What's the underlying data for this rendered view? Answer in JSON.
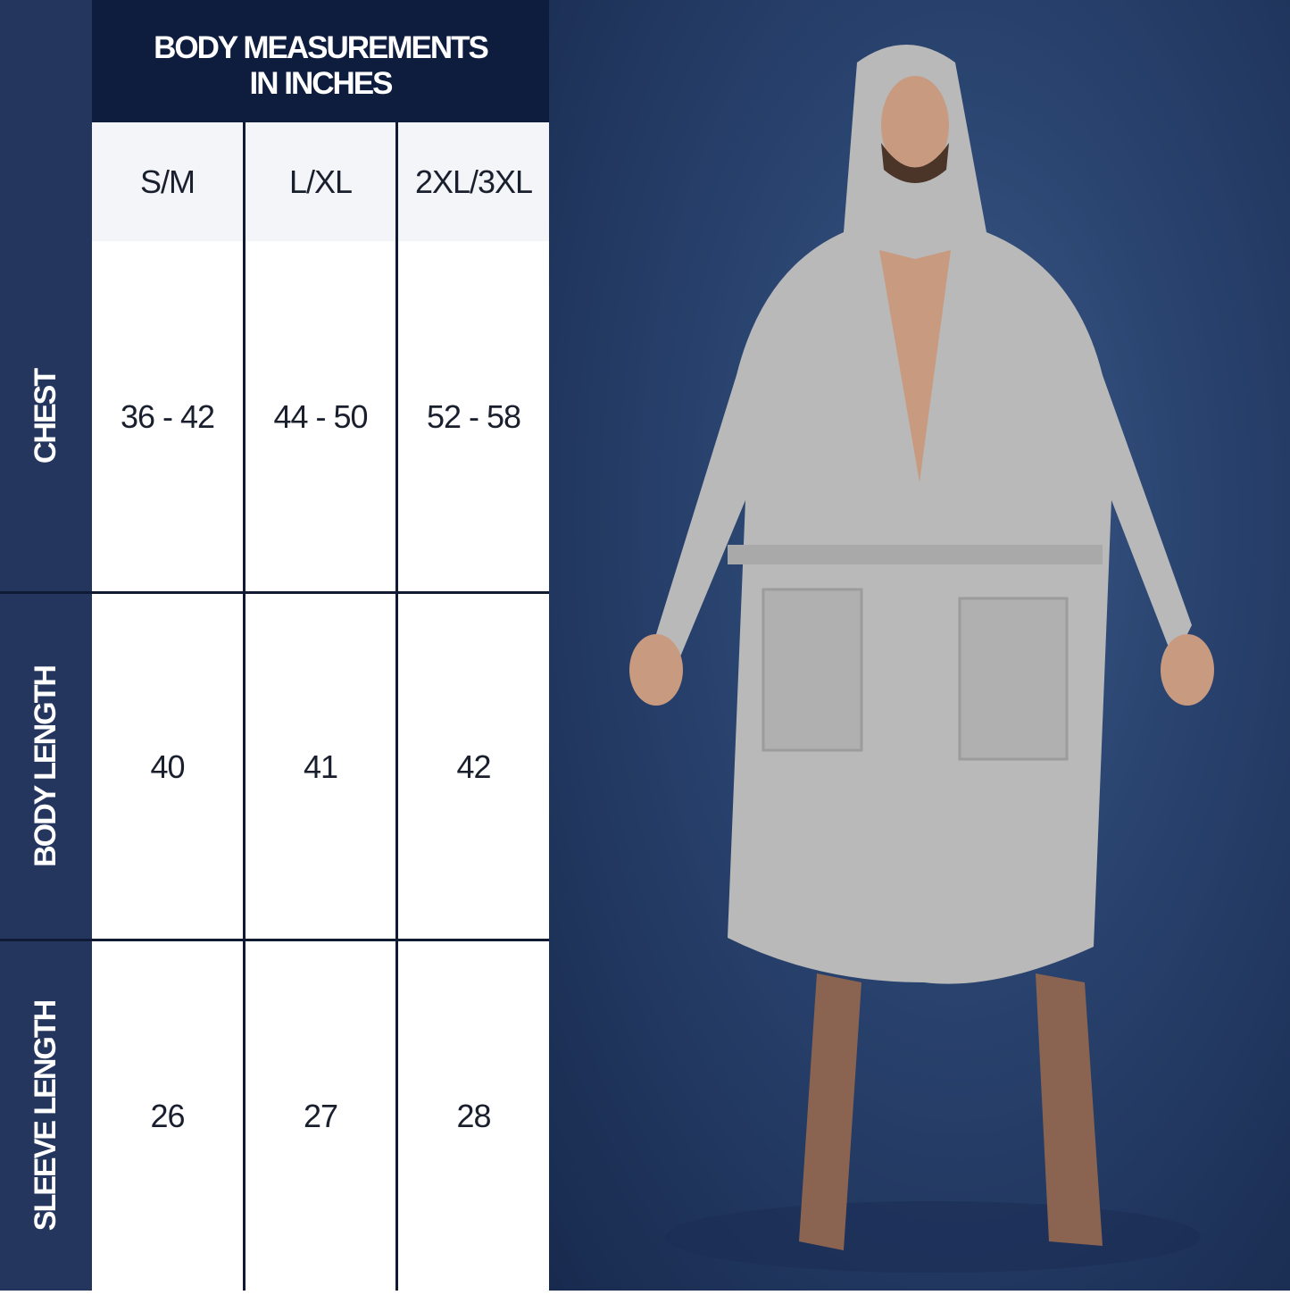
{
  "header": {
    "title_line1": "BODY MEASUREMENTS",
    "title_line2": "IN INCHES"
  },
  "sizes": [
    "S/M",
    "L/XL",
    "2XL/3XL"
  ],
  "rows": [
    {
      "label": "CHEST",
      "values": [
        "36 - 42",
        "44 - 50",
        "52 - 58"
      ]
    },
    {
      "label": "BODY LENGTH",
      "values": [
        "40",
        "41",
        "42"
      ]
    },
    {
      "label": "SLEEVE LENGTH",
      "values": [
        "26",
        "27",
        "28"
      ]
    }
  ],
  "colors": {
    "sidebar": "#24365e",
    "header": "#0e1c3e",
    "header_row": "#f4f5f8",
    "robe": "#b9b9b9"
  }
}
